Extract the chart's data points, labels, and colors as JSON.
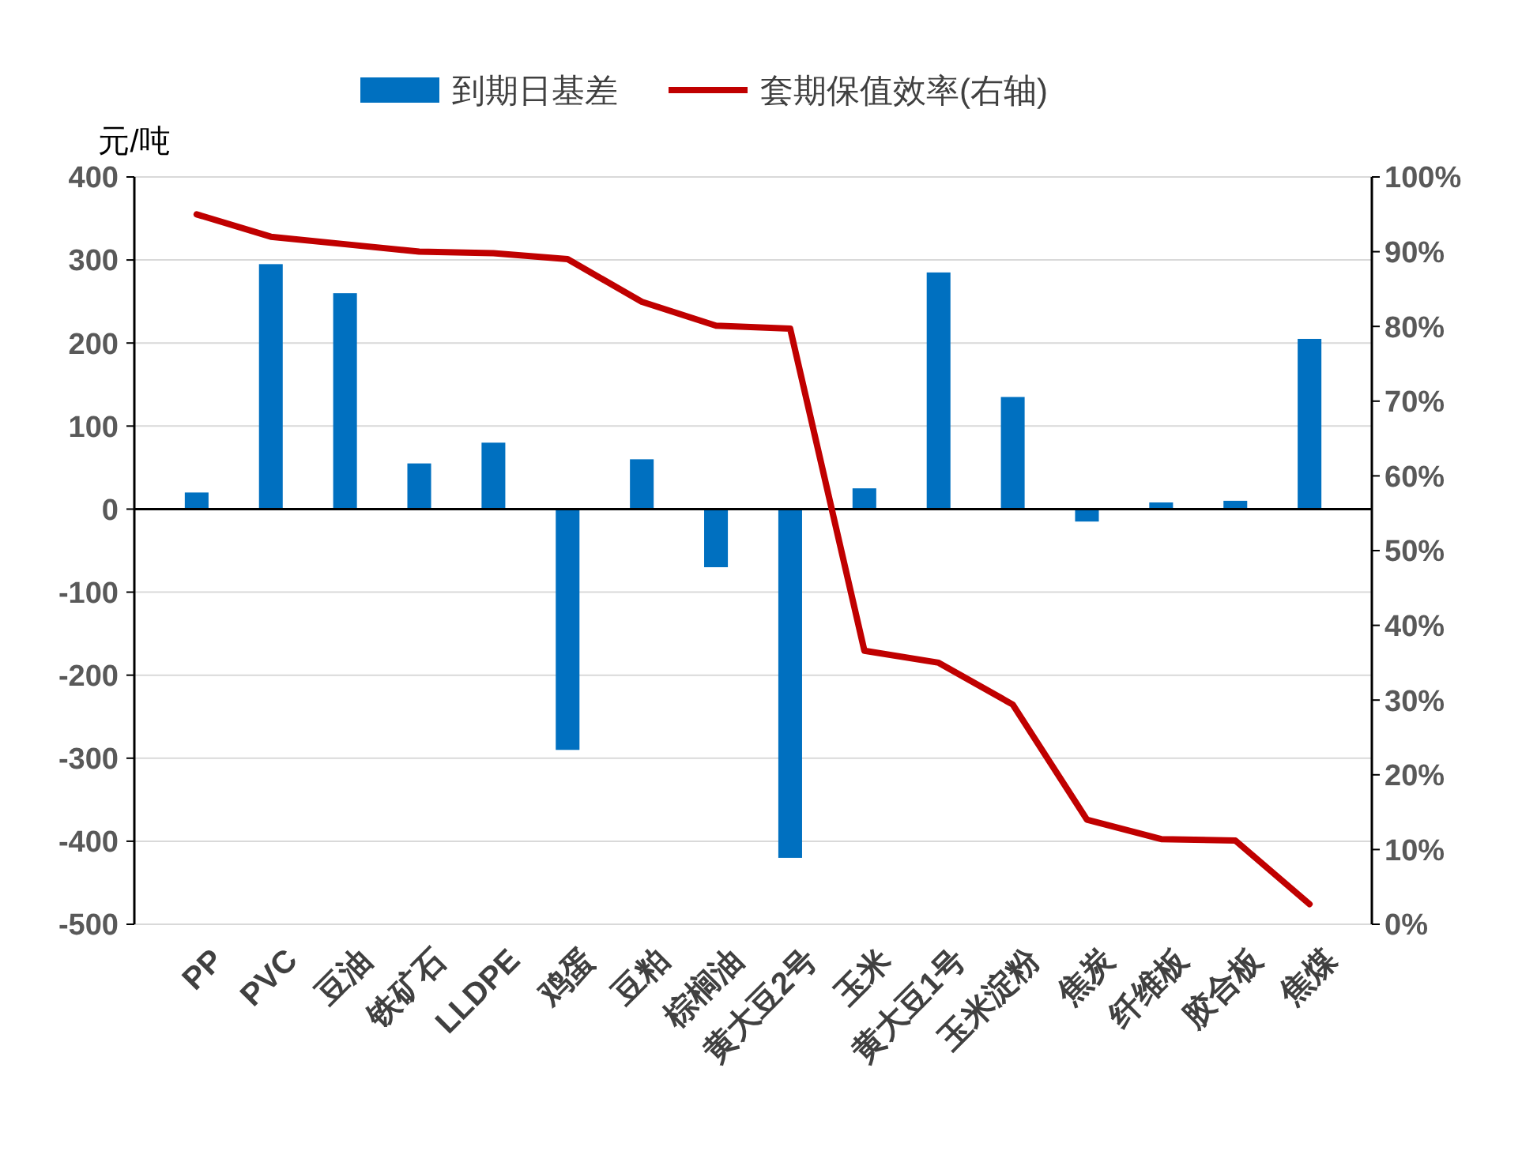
{
  "chart_data": {
    "type": "bar",
    "ylabel": "元/吨",
    "categories": [
      "PP",
      "PVC",
      "豆油",
      "铁矿石",
      "LLDPE",
      "鸡蛋",
      "豆粕",
      "棕榈油",
      "黄大豆2号",
      "玉米",
      "黄大豆1号",
      "玉米淀粉",
      "焦炭",
      "纤维板",
      "胶合板",
      "焦煤"
    ],
    "series": [
      {
        "name": "到期日基差",
        "color": "#0070c0",
        "values": [
          20,
          295,
          260,
          55,
          80,
          -290,
          60,
          -70,
          -420,
          25,
          285,
          135,
          -15,
          8,
          10,
          205
        ]
      },
      {
        "name": "套期保值效率(右轴)",
        "type": "line",
        "axis": "y2",
        "color": "#c00000",
        "values": [
          95,
          92,
          91,
          90,
          89.8,
          89,
          83.3,
          80.1,
          79.7,
          36.6,
          35,
          29.4,
          14,
          11.4,
          11.2,
          2.7
        ]
      }
    ],
    "ylim": [
      -500,
      400
    ],
    "yticks": [
      -500,
      -400,
      -300,
      -200,
      -100,
      0,
      100,
      200,
      300,
      400
    ],
    "y2lim": [
      0,
      100
    ],
    "y2ticks": [
      {
        "value": 0,
        "label": "0%"
      },
      {
        "value": 10,
        "label": "10%"
      },
      {
        "value": 20,
        "label": "20%"
      },
      {
        "value": 30,
        "label": "30%"
      },
      {
        "value": 40,
        "label": "40%"
      },
      {
        "value": 50,
        "label": "50%"
      },
      {
        "value": 60,
        "label": "60%"
      },
      {
        "value": 70,
        "label": "70%"
      },
      {
        "value": 80,
        "label": "80%"
      },
      {
        "value": 90,
        "label": "90%"
      },
      {
        "value": 100,
        "label": "100%"
      }
    ],
    "grid": "y",
    "legend": "top",
    "marker": "none",
    "line_style": "solid"
  }
}
